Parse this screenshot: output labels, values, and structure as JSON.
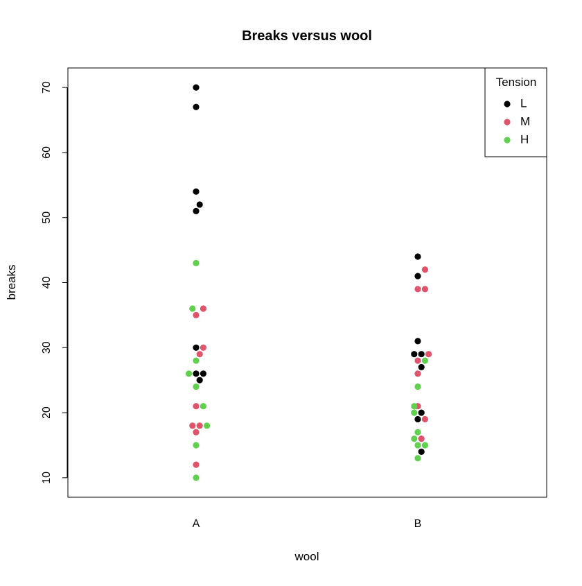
{
  "chart_data": {
    "type": "scatter",
    "title": "Breaks versus wool",
    "xlabel": "wool",
    "ylabel": "breaks",
    "categories": [
      "A",
      "B"
    ],
    "ylim": [
      7,
      73
    ],
    "yticks": [
      10,
      20,
      30,
      40,
      50,
      60,
      70
    ],
    "grid": false,
    "legend": {
      "title": "Tension",
      "position": "top-right"
    },
    "series": [
      {
        "name": "L",
        "color": "#000000",
        "points": [
          {
            "x": "A",
            "offset": 0,
            "y": 70
          },
          {
            "x": "A",
            "offset": 0,
            "y": 67
          },
          {
            "x": "A",
            "offset": 0,
            "y": 54
          },
          {
            "x": "A",
            "offset": 1,
            "y": 52
          },
          {
            "x": "A",
            "offset": 0,
            "y": 51
          },
          {
            "x": "A",
            "offset": 0,
            "y": 30
          },
          {
            "x": "A",
            "offset": 0,
            "y": 26
          },
          {
            "x": "A",
            "offset": 2,
            "y": 26
          },
          {
            "x": "A",
            "offset": 1,
            "y": 25
          },
          {
            "x": "B",
            "offset": 0,
            "y": 44
          },
          {
            "x": "B",
            "offset": 0,
            "y": 41
          },
          {
            "x": "B",
            "offset": 0,
            "y": 31
          },
          {
            "x": "B",
            "offset": -1,
            "y": 29
          },
          {
            "x": "B",
            "offset": 1,
            "y": 29
          },
          {
            "x": "B",
            "offset": 1,
            "y": 27
          },
          {
            "x": "B",
            "offset": 1,
            "y": 20
          },
          {
            "x": "B",
            "offset": 0,
            "y": 19
          },
          {
            "x": "B",
            "offset": 1,
            "y": 14
          }
        ]
      },
      {
        "name": "M",
        "color": "#DF536B",
        "points": [
          {
            "x": "A",
            "offset": 2,
            "y": 36
          },
          {
            "x": "A",
            "offset": 0,
            "y": 35
          },
          {
            "x": "A",
            "offset": 2,
            "y": 30
          },
          {
            "x": "A",
            "offset": 1,
            "y": 29
          },
          {
            "x": "A",
            "offset": 0,
            "y": 21
          },
          {
            "x": "A",
            "offset": -1,
            "y": 18
          },
          {
            "x": "A",
            "offset": 1,
            "y": 18
          },
          {
            "x": "A",
            "offset": 0,
            "y": 17
          },
          {
            "x": "A",
            "offset": 0,
            "y": 12
          },
          {
            "x": "B",
            "offset": 2,
            "y": 42
          },
          {
            "x": "B",
            "offset": 0,
            "y": 39
          },
          {
            "x": "B",
            "offset": 2,
            "y": 39
          },
          {
            "x": "B",
            "offset": 3,
            "y": 29
          },
          {
            "x": "B",
            "offset": 0,
            "y": 28
          },
          {
            "x": "B",
            "offset": 0,
            "y": 26
          },
          {
            "x": "B",
            "offset": 0,
            "y": 21
          },
          {
            "x": "B",
            "offset": 2,
            "y": 19
          },
          {
            "x": "B",
            "offset": 1,
            "y": 16
          }
        ]
      },
      {
        "name": "H",
        "color": "#61D04F",
        "points": [
          {
            "x": "A",
            "offset": 0,
            "y": 43
          },
          {
            "x": "A",
            "offset": -1,
            "y": 36
          },
          {
            "x": "A",
            "offset": 0,
            "y": 28
          },
          {
            "x": "A",
            "offset": -2,
            "y": 26
          },
          {
            "x": "A",
            "offset": 0,
            "y": 24
          },
          {
            "x": "A",
            "offset": 2,
            "y": 21
          },
          {
            "x": "A",
            "offset": 3,
            "y": 18
          },
          {
            "x": "A",
            "offset": 0,
            "y": 15
          },
          {
            "x": "A",
            "offset": 0,
            "y": 10
          },
          {
            "x": "B",
            "offset": 2,
            "y": 28
          },
          {
            "x": "B",
            "offset": 0,
            "y": 24
          },
          {
            "x": "B",
            "offset": -1,
            "y": 21
          },
          {
            "x": "B",
            "offset": -1,
            "y": 20
          },
          {
            "x": "B",
            "offset": 0,
            "y": 17
          },
          {
            "x": "B",
            "offset": -1,
            "y": 16
          },
          {
            "x": "B",
            "offset": 0,
            "y": 15
          },
          {
            "x": "B",
            "offset": 2,
            "y": 15
          },
          {
            "x": "B",
            "offset": 0,
            "y": 13
          }
        ]
      }
    ]
  }
}
